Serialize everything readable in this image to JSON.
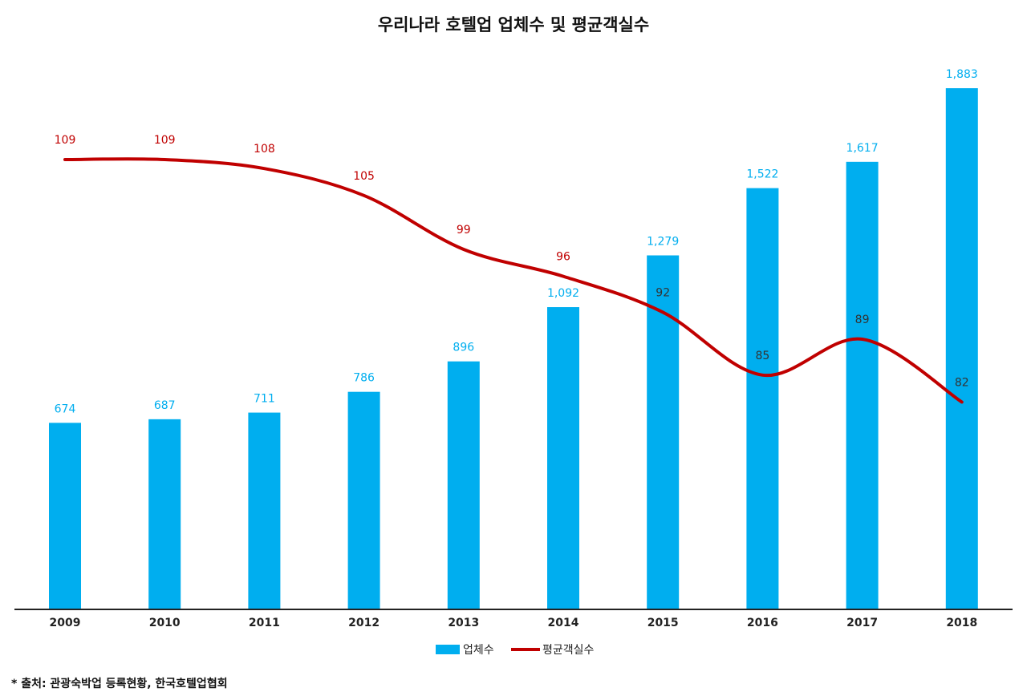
{
  "chart_data": {
    "type": "bar",
    "title": "우리나라 호텔업 업체수 및 평균객실수",
    "categories": [
      "2009",
      "2010",
      "2011",
      "2012",
      "2013",
      "2014",
      "2015",
      "2016",
      "2017",
      "2018"
    ],
    "series": [
      {
        "name": "업체수",
        "type": "bar",
        "values": [
          674,
          687,
          711,
          786,
          896,
          1092,
          1279,
          1522,
          1617,
          1883
        ],
        "labels": [
          "674",
          "687",
          "711",
          "786",
          "896",
          "1,092",
          "1,279",
          "1,522",
          "1,617",
          "1,883"
        ]
      },
      {
        "name": "평균객실수",
        "type": "line",
        "values": [
          109,
          109,
          108,
          105,
          99,
          96,
          92,
          85,
          89,
          82
        ],
        "labels": [
          "109",
          "109",
          "108",
          "105",
          "99",
          "96",
          "92",
          "85",
          "89",
          "82"
        ]
      }
    ],
    "grid": false,
    "legend": "bottom-center",
    "colors": {
      "bar": "#00AEEF",
      "line": "#C00000",
      "inner_label": "#333333"
    }
  },
  "footnote": "* 출처: 관광숙박업 등록현황, 한국호텔업협회"
}
